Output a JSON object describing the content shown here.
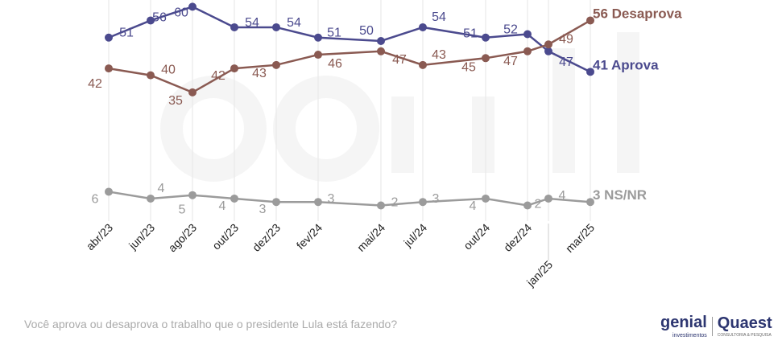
{
  "chart_data": {
    "type": "line",
    "title": "",
    "xlabel": "",
    "ylabel": "",
    "categories": [
      "abr/23",
      "jun/23",
      "ago/23",
      "out/23",
      "dez/23",
      "fev/24",
      "mai/24",
      "jul/24",
      "out/24",
      "dez/24",
      "jan/25",
      "mar/25"
    ],
    "x_time_axis": true,
    "grid": "vertical",
    "series": [
      {
        "name": "Aprova",
        "end_label": "41 Aprova",
        "color": "#4b4a8e",
        "values": [
          51,
          56,
          60,
          54,
          54,
          51,
          50,
          54,
          51,
          52,
          47,
          41
        ]
      },
      {
        "name": "Desaprova",
        "end_label": "56 Desaprova",
        "color": "#8a5a52",
        "values": [
          42,
          40,
          35,
          42,
          43,
          46,
          47,
          43,
          45,
          47,
          49,
          56
        ]
      },
      {
        "name": "NS/NR",
        "end_label": "3 NS/NR",
        "color": "#9b9b9b",
        "values": [
          6,
          4,
          5,
          4,
          3,
          3,
          2,
          3,
          4,
          2,
          4,
          3
        ]
      }
    ]
  },
  "watermark": "genial investimentos",
  "footer": {
    "question": "Você aprova ou desaprova o trabalho que o presidente Lula está fazendo?",
    "logo_genial": "genial",
    "logo_genial_sub": "investimentos",
    "logo_quaest": "Quaest",
    "logo_quaest_sub": "CONSULTORIA & PESQUISA"
  }
}
